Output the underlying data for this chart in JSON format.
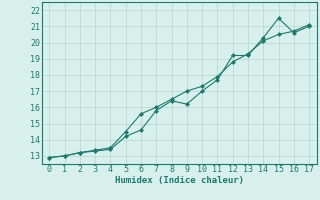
{
  "line1_x": [
    0,
    1,
    2,
    3,
    4,
    5,
    6,
    7,
    8,
    9,
    10,
    11,
    12,
    13,
    14,
    15,
    16,
    17
  ],
  "line1_y": [
    12.9,
    13.0,
    13.2,
    13.3,
    13.4,
    14.2,
    14.6,
    15.8,
    16.4,
    16.2,
    17.0,
    17.7,
    19.2,
    19.2,
    20.3,
    21.5,
    20.6,
    21.0
  ],
  "line2_x": [
    0,
    1,
    2,
    3,
    4,
    5,
    6,
    7,
    8,
    9,
    10,
    11,
    12,
    13,
    14,
    15,
    16,
    17
  ],
  "line2_y": [
    12.9,
    13.0,
    13.2,
    13.35,
    13.5,
    14.5,
    15.6,
    16.0,
    16.5,
    17.0,
    17.3,
    17.9,
    18.8,
    19.3,
    20.1,
    20.5,
    20.7,
    21.1
  ],
  "color": "#1a7a6e",
  "bg_color": "#d8f0ec",
  "grid_color": "#c0d8d4",
  "xlabel": "Humidex (Indice chaleur)",
  "ylim": [
    12.5,
    22.5
  ],
  "xlim": [
    -0.5,
    17.5
  ],
  "yticks": [
    13,
    14,
    15,
    16,
    17,
    18,
    19,
    20,
    21,
    22
  ],
  "xticks": [
    0,
    1,
    2,
    3,
    4,
    5,
    6,
    7,
    8,
    9,
    10,
    11,
    12,
    13,
    14,
    15,
    16,
    17
  ],
  "marker": "D",
  "markersize": 2,
  "linewidth": 0.8,
  "xlabel_fontsize": 6.5,
  "tick_fontsize": 6
}
